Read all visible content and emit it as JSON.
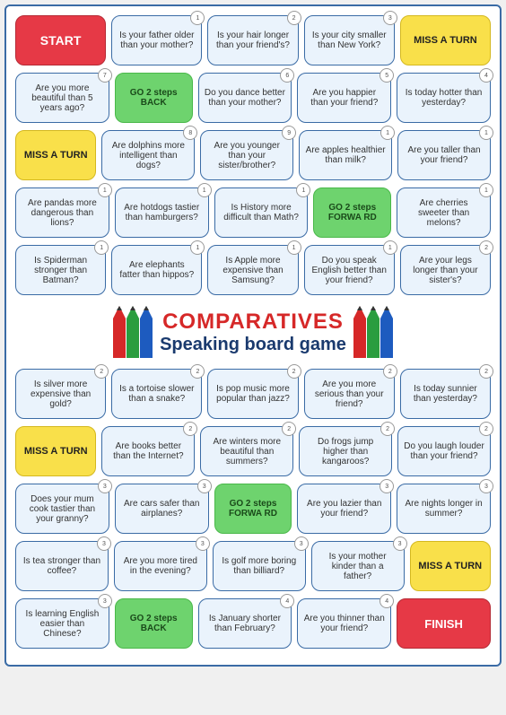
{
  "title": {
    "main": "COMPARATIVES",
    "sub": "Speaking board game"
  },
  "labels": {
    "start": "START",
    "finish": "FINISH",
    "miss": "MISS A TURN",
    "go_back": "GO 2 steps BACK",
    "go_fwd": "GO 2 steps FORWA RD"
  },
  "rows": [
    [
      {
        "type": "start"
      },
      {
        "text": "Is your father older than your mother?",
        "n": "1"
      },
      {
        "text": "Is your hair longer than your friend's?",
        "n": "2"
      },
      {
        "text": "Is your city smaller than New York?",
        "n": "3"
      },
      {
        "type": "miss"
      }
    ],
    [
      {
        "text": "Are you more beautiful than 5 years ago?",
        "n": "7"
      },
      {
        "type": "go_back"
      },
      {
        "text": "Do you dance better than your mother?",
        "n": "6"
      },
      {
        "text": "Are you happier than your friend?",
        "n": "5"
      },
      {
        "text": "Is today hotter than yesterday?",
        "n": "4"
      }
    ],
    [
      {
        "type": "miss",
        "short": true
      },
      {
        "text": "Are dolphins more intelligent than dogs?",
        "n": "8"
      },
      {
        "text": "Are you younger than your sister/brother?",
        "n": "9"
      },
      {
        "text": "Are apples healthier than milk?",
        "n": "1"
      },
      {
        "text": "Are you taller than your friend?",
        "n": "1"
      }
    ],
    [
      {
        "text": "Are pandas more dangerous than lions?",
        "n": "1"
      },
      {
        "text": "Are hotdogs tastier than hamburgers?",
        "n": "1"
      },
      {
        "text": "Is History more difficult than Math?",
        "n": "1"
      },
      {
        "type": "go_fwd"
      },
      {
        "text": "Are cherries sweeter than melons?",
        "n": "1"
      }
    ],
    [
      {
        "text": "Is Spiderman stronger than Batman?",
        "n": "1"
      },
      {
        "text": "Are elephants fatter than hippos?",
        "n": "1"
      },
      {
        "text": "Is Apple more expensive than Samsung?",
        "n": "1"
      },
      {
        "text": "Do you speak English better than your friend?",
        "n": "1"
      },
      {
        "text": "Are your legs longer than your sister's?",
        "n": "2"
      }
    ]
  ],
  "rows2": [
    [
      {
        "text": "Is silver more expensive than gold?",
        "n": "2"
      },
      {
        "text": "Is a tortoise slower than a snake?",
        "n": "2"
      },
      {
        "text": "Is pop music more popular than jazz?",
        "n": "2"
      },
      {
        "text": "Are you more serious than your friend?",
        "n": "2"
      },
      {
        "text": "Is today sunnier than yesterday?",
        "n": "2"
      }
    ],
    [
      {
        "type": "miss",
        "short": true
      },
      {
        "text": "Are books better than the Internet?",
        "n": "2"
      },
      {
        "text": "Are winters more beautiful than summers?",
        "n": "2"
      },
      {
        "text": "Do frogs jump higher than kangaroos?",
        "n": "2"
      },
      {
        "text": "Do you laugh louder than your friend?",
        "n": "2"
      }
    ],
    [
      {
        "text": "Does your mum cook tastier than your granny?",
        "n": "3"
      },
      {
        "text": "Are cars safer than airplanes?",
        "n": "3"
      },
      {
        "type": "go_fwd"
      },
      {
        "text": "Are you lazier than your friend?",
        "n": "3"
      },
      {
        "text": "Are nights longer in summer?",
        "n": "3"
      }
    ],
    [
      {
        "text": "Is tea stronger than coffee?",
        "n": "3"
      },
      {
        "text": "Are you more tired in the evening?",
        "n": "3"
      },
      {
        "text": "Is golf more boring than billiard?",
        "n": "3"
      },
      {
        "text": "Is your mother kinder than a father?",
        "n": "3"
      },
      {
        "type": "miss",
        "short": true
      }
    ],
    [
      {
        "text": "Is learning English easier than Chinese?",
        "n": "3"
      },
      {
        "type": "go_back"
      },
      {
        "text": "Is January shorter than February?",
        "n": "4"
      },
      {
        "text": "Are you thinner than your friend?",
        "n": "4"
      },
      {
        "type": "finish"
      }
    ]
  ]
}
